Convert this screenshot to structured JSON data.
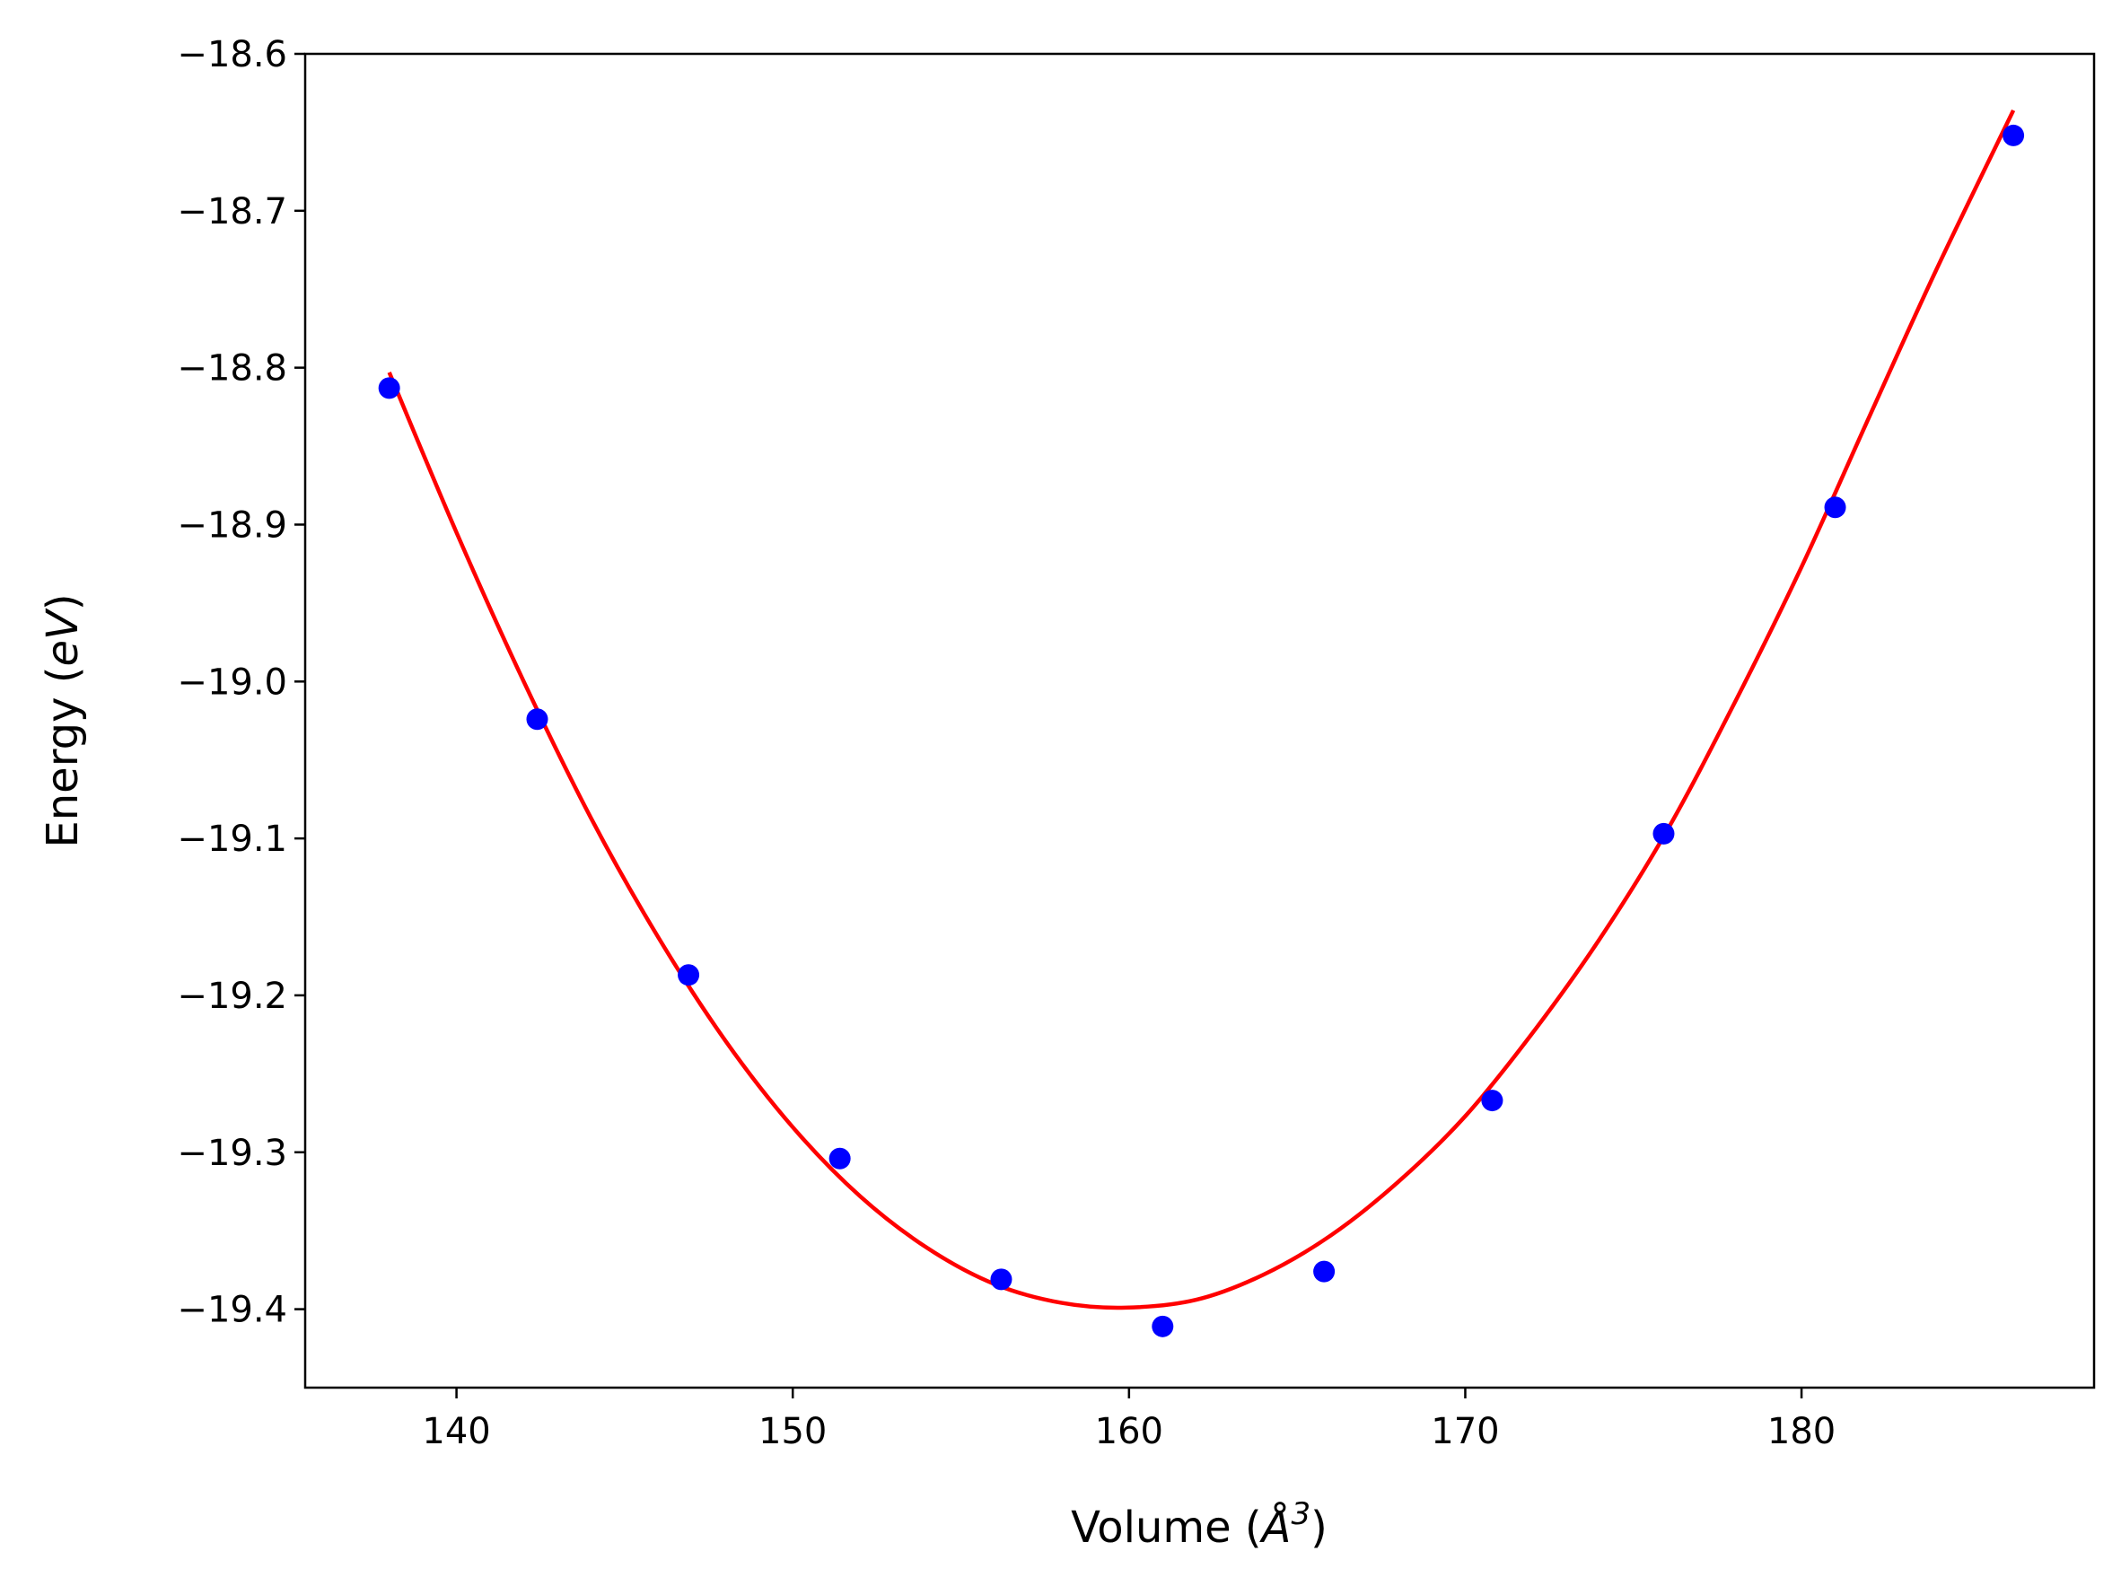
{
  "chart_data": {
    "type": "scatter",
    "title": "",
    "xlabel": {
      "prefix": "Volume (",
      "unit_symbol": "Å",
      "exponent": "3",
      "suffix": ")"
    },
    "ylabel": {
      "prefix": "Energy (",
      "unit": "eV",
      "suffix": ")"
    },
    "xlim": [
      135.5,
      188.7
    ],
    "ylim": [
      -19.45,
      -18.6
    ],
    "x_ticks": [
      140,
      150,
      160,
      170,
      180
    ],
    "x_tick_labels": [
      "140",
      "150",
      "160",
      "170",
      "180"
    ],
    "y_ticks": [
      -19.4,
      -19.3,
      -19.2,
      -19.1,
      -19.0,
      -18.9,
      -18.8,
      -18.7,
      -18.6
    ],
    "y_tick_labels": [
      "−19.4",
      "−19.3",
      "−19.2",
      "−19.1",
      "−19.0",
      "−18.9",
      "−18.8",
      "−18.7",
      "−18.6"
    ],
    "grid": false,
    "series": [
      {
        "kind": "scatter",
        "color": "#0000ff",
        "points": [
          {
            "x": 138.0,
            "y": -18.813
          },
          {
            "x": 142.4,
            "y": -19.024
          },
          {
            "x": 146.9,
            "y": -19.187
          },
          {
            "x": 151.4,
            "y": -19.304
          },
          {
            "x": 156.2,
            "y": -19.381
          },
          {
            "x": 161.0,
            "y": -19.411
          },
          {
            "x": 165.8,
            "y": -19.376
          },
          {
            "x": 170.8,
            "y": -19.267
          },
          {
            "x": 175.9,
            "y": -19.097
          },
          {
            "x": 181.0,
            "y": -18.889
          },
          {
            "x": 186.3,
            "y": -18.652
          }
        ]
      },
      {
        "kind": "line",
        "color": "#ff0000",
        "points": [
          {
            "x": 138.0,
            "y": -18.803
          },
          {
            "x": 140.0,
            "y": -18.905
          },
          {
            "x": 142.0,
            "y": -19.0
          },
          {
            "x": 144.0,
            "y": -19.087
          },
          {
            "x": 146.0,
            "y": -19.163
          },
          {
            "x": 148.0,
            "y": -19.229
          },
          {
            "x": 150.0,
            "y": -19.284
          },
          {
            "x": 152.0,
            "y": -19.328
          },
          {
            "x": 154.0,
            "y": -19.361
          },
          {
            "x": 156.0,
            "y": -19.384
          },
          {
            "x": 158.0,
            "y": -19.396
          },
          {
            "x": 159.9,
            "y": -19.399
          },
          {
            "x": 162.0,
            "y": -19.394
          },
          {
            "x": 164.0,
            "y": -19.378
          },
          {
            "x": 166.0,
            "y": -19.353
          },
          {
            "x": 168.0,
            "y": -19.319
          },
          {
            "x": 170.0,
            "y": -19.277
          },
          {
            "x": 172.0,
            "y": -19.224
          },
          {
            "x": 174.0,
            "y": -19.164
          },
          {
            "x": 176.0,
            "y": -19.095
          },
          {
            "x": 178.0,
            "y": -19.014
          },
          {
            "x": 180.0,
            "y": -18.927
          },
          {
            "x": 182.0,
            "y": -18.832
          },
          {
            "x": 184.0,
            "y": -18.738
          },
          {
            "x": 186.3,
            "y": -18.636
          }
        ]
      }
    ]
  }
}
